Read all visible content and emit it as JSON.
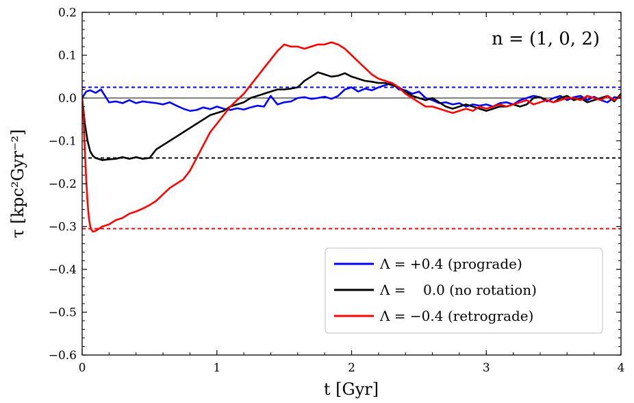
{
  "chart_data": {
    "type": "line",
    "title": "",
    "annotation": "n = (1, 0, 2)",
    "xlabel": "t [Gyr]",
    "ylabel": "τ [kpc²Gyr⁻²]",
    "xlim": [
      0,
      4
    ],
    "ylim": [
      -0.6,
      0.2
    ],
    "xticks": [
      0,
      1,
      2,
      3,
      4
    ],
    "yticks": [
      -0.6,
      -0.5,
      -0.4,
      -0.3,
      -0.2,
      -0.1,
      0.0,
      0.1,
      0.2
    ],
    "xtick_labels": [
      "0",
      "1",
      "2",
      "3",
      "4"
    ],
    "ytick_labels": [
      "−0.6",
      "−0.5",
      "−0.4",
      "−0.3",
      "−0.2",
      "−0.1",
      "0.0",
      "0.1",
      "0.2"
    ],
    "legend_position": "lower-right",
    "reference_lines": [
      {
        "y": 0.0,
        "color": "#000000",
        "style": "solid"
      },
      {
        "y": 0.025,
        "color": "#0000ff",
        "style": "dashed"
      },
      {
        "y": -0.14,
        "color": "#000000",
        "style": "dashed"
      },
      {
        "y": -0.305,
        "color": "#ff0000",
        "style": "dashed"
      }
    ],
    "series": [
      {
        "name": "Λ = +0.4 (prograde)",
        "color": "#0000ff",
        "x": [
          0,
          0.03,
          0.06,
          0.1,
          0.14,
          0.2,
          0.25,
          0.3,
          0.35,
          0.4,
          0.45,
          0.5,
          0.55,
          0.6,
          0.65,
          0.7,
          0.75,
          0.8,
          0.85,
          0.9,
          0.95,
          1.0,
          1.05,
          1.1,
          1.15,
          1.2,
          1.25,
          1.3,
          1.35,
          1.4,
          1.45,
          1.5,
          1.55,
          1.6,
          1.65,
          1.7,
          1.75,
          1.8,
          1.85,
          1.9,
          1.95,
          2.0,
          2.05,
          2.1,
          2.15,
          2.2,
          2.25,
          2.3,
          2.35,
          2.4,
          2.45,
          2.5,
          2.55,
          2.6,
          2.65,
          2.7,
          2.75,
          2.8,
          2.85,
          2.9,
          2.95,
          3.0,
          3.05,
          3.1,
          3.15,
          3.2,
          3.25,
          3.3,
          3.35,
          3.4,
          3.45,
          3.5,
          3.55,
          3.6,
          3.65,
          3.7,
          3.75,
          3.8,
          3.85,
          3.9,
          3.95,
          4.0
        ],
        "y": [
          0.0,
          0.015,
          0.018,
          0.012,
          0.02,
          -0.01,
          -0.008,
          -0.012,
          -0.005,
          -0.012,
          -0.008,
          -0.01,
          -0.012,
          -0.015,
          -0.01,
          -0.018,
          -0.025,
          -0.03,
          -0.028,
          -0.022,
          -0.026,
          -0.02,
          -0.025,
          -0.028,
          -0.024,
          -0.027,
          -0.022,
          -0.018,
          -0.02,
          0.005,
          -0.015,
          -0.01,
          -0.008,
          0.0,
          0.002,
          -0.002,
          0.0,
          0.003,
          -0.002,
          0.005,
          0.02,
          0.025,
          0.015,
          0.022,
          0.018,
          0.025,
          0.03,
          0.035,
          0.02,
          0.018,
          0.01,
          0.015,
          0.0,
          -0.005,
          -0.012,
          -0.01,
          -0.015,
          -0.012,
          -0.02,
          -0.015,
          -0.018,
          -0.015,
          -0.02,
          -0.012,
          -0.01,
          -0.015,
          -0.005,
          0.0,
          0.005,
          0.002,
          -0.008,
          0.0,
          0.005,
          -0.005,
          0.002,
          0.005,
          -0.005,
          0.003,
          -0.005,
          -0.01,
          0.002,
          0.0
        ]
      },
      {
        "name": "Λ =    0.0 (no rotation)",
        "color": "#000000",
        "x": [
          0,
          0.02,
          0.04,
          0.06,
          0.08,
          0.1,
          0.15,
          0.2,
          0.25,
          0.3,
          0.35,
          0.4,
          0.45,
          0.5,
          0.55,
          0.6,
          0.65,
          0.7,
          0.75,
          0.8,
          0.85,
          0.9,
          0.95,
          1.0,
          1.05,
          1.1,
          1.15,
          1.2,
          1.25,
          1.3,
          1.35,
          1.4,
          1.45,
          1.5,
          1.55,
          1.6,
          1.65,
          1.7,
          1.75,
          1.8,
          1.85,
          1.9,
          1.95,
          2.0,
          2.05,
          2.1,
          2.15,
          2.2,
          2.25,
          2.3,
          2.35,
          2.4,
          2.45,
          2.5,
          2.55,
          2.6,
          2.65,
          2.7,
          2.75,
          2.8,
          2.85,
          2.9,
          2.95,
          3.0,
          3.05,
          3.1,
          3.15,
          3.2,
          3.25,
          3.3,
          3.35,
          3.4,
          3.45,
          3.5,
          3.55,
          3.6,
          3.65,
          3.7,
          3.75,
          3.8,
          3.85,
          3.9,
          3.95,
          4.0
        ],
        "y": [
          0.0,
          -0.06,
          -0.1,
          -0.125,
          -0.135,
          -0.14,
          -0.145,
          -0.143,
          -0.142,
          -0.138,
          -0.142,
          -0.138,
          -0.142,
          -0.14,
          -0.12,
          -0.11,
          -0.1,
          -0.09,
          -0.08,
          -0.07,
          -0.06,
          -0.05,
          -0.04,
          -0.035,
          -0.03,
          -0.02,
          -0.015,
          -0.01,
          0.0,
          0.005,
          0.01,
          0.015,
          0.02,
          0.02,
          0.022,
          0.025,
          0.04,
          0.05,
          0.06,
          0.055,
          0.05,
          0.052,
          0.058,
          0.05,
          0.045,
          0.04,
          0.038,
          0.035,
          0.035,
          0.03,
          0.025,
          0.015,
          0.005,
          0.0,
          -0.005,
          0.0,
          -0.01,
          -0.02,
          -0.025,
          -0.02,
          -0.015,
          -0.02,
          -0.025,
          -0.03,
          -0.025,
          -0.02,
          -0.02,
          -0.015,
          -0.02,
          -0.015,
          0.0,
          0.002,
          -0.005,
          -0.01,
          0.0,
          0.005,
          -0.005,
          0.0,
          -0.01,
          -0.005,
          0.0,
          0.005,
          -0.008,
          0.01
        ]
      },
      {
        "name": "Λ = −0.4 (retrograde)",
        "color": "#ff0000",
        "x": [
          0,
          0.01,
          0.02,
          0.03,
          0.04,
          0.05,
          0.06,
          0.07,
          0.08,
          0.1,
          0.15,
          0.2,
          0.25,
          0.3,
          0.35,
          0.4,
          0.45,
          0.5,
          0.55,
          0.6,
          0.65,
          0.7,
          0.75,
          0.8,
          0.85,
          0.9,
          0.95,
          1.0,
          1.05,
          1.1,
          1.15,
          1.2,
          1.25,
          1.3,
          1.35,
          1.4,
          1.45,
          1.5,
          1.55,
          1.6,
          1.65,
          1.7,
          1.75,
          1.8,
          1.85,
          1.9,
          1.95,
          2.0,
          2.05,
          2.1,
          2.15,
          2.2,
          2.25,
          2.3,
          2.35,
          2.4,
          2.45,
          2.5,
          2.55,
          2.6,
          2.65,
          2.7,
          2.75,
          2.8,
          2.85,
          2.9,
          2.95,
          3.0,
          3.05,
          3.1,
          3.15,
          3.2,
          3.25,
          3.3,
          3.35,
          3.4,
          3.45,
          3.5,
          3.55,
          3.6,
          3.65,
          3.7,
          3.75,
          3.8,
          3.85,
          3.9,
          3.95,
          4.0
        ],
        "y": [
          0.0,
          -0.05,
          -0.12,
          -0.19,
          -0.245,
          -0.28,
          -0.3,
          -0.308,
          -0.312,
          -0.31,
          -0.3,
          -0.295,
          -0.285,
          -0.28,
          -0.27,
          -0.265,
          -0.258,
          -0.25,
          -0.24,
          -0.225,
          -0.21,
          -0.2,
          -0.19,
          -0.17,
          -0.14,
          -0.11,
          -0.08,
          -0.06,
          -0.04,
          -0.02,
          -0.005,
          0.01,
          0.03,
          0.05,
          0.07,
          0.09,
          0.11,
          0.125,
          0.12,
          0.12,
          0.115,
          0.12,
          0.125,
          0.125,
          0.13,
          0.125,
          0.115,
          0.1,
          0.085,
          0.07,
          0.055,
          0.045,
          0.04,
          0.035,
          0.025,
          0.01,
          0.0,
          -0.01,
          -0.02,
          -0.02,
          -0.025,
          -0.03,
          -0.035,
          -0.03,
          -0.025,
          -0.03,
          -0.02,
          -0.025,
          -0.02,
          -0.015,
          -0.02,
          -0.015,
          -0.01,
          -0.005,
          -0.015,
          -0.01,
          -0.005,
          -0.01,
          -0.005,
          0.0,
          0.0,
          -0.005,
          0.005,
          0.0,
          -0.005,
          0.005,
          -0.005,
          0.005
        ]
      }
    ]
  }
}
